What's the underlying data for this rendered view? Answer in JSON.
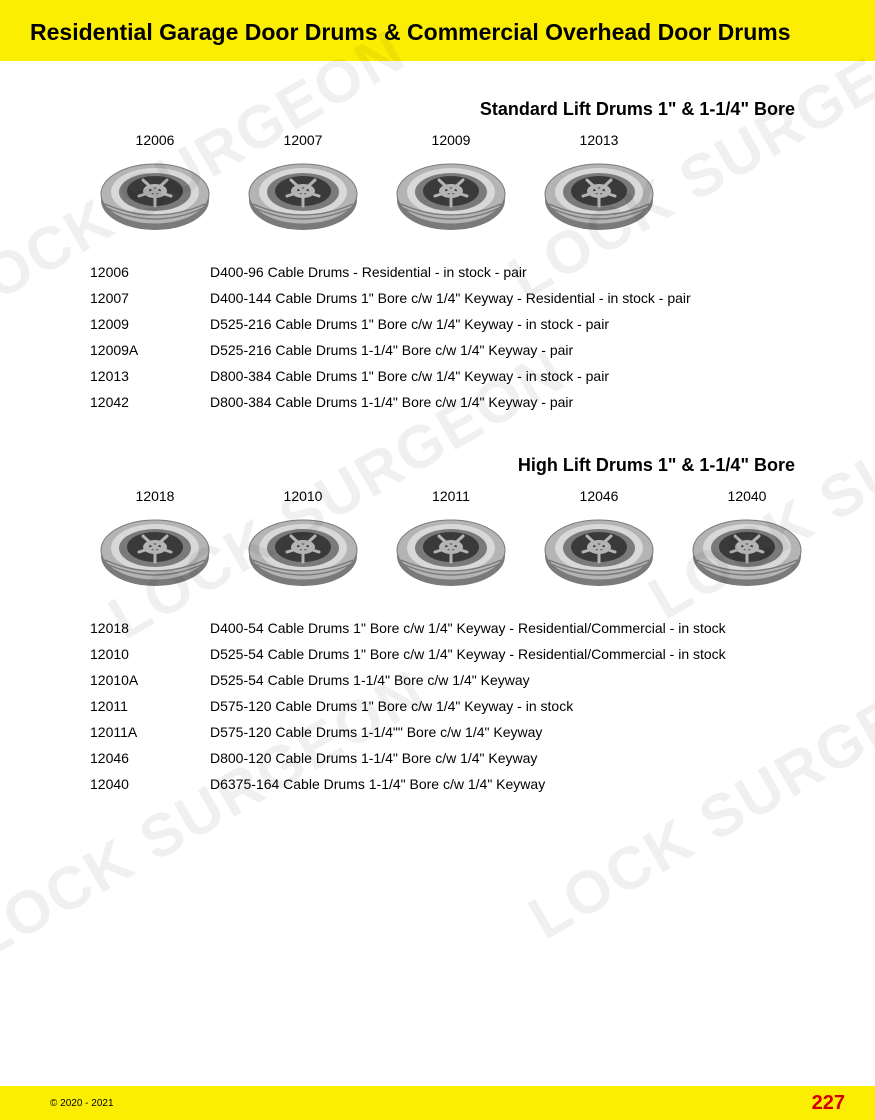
{
  "header": {
    "title": "Residential Garage Door Drums & Commercial Overhead Door Drums"
  },
  "colors": {
    "header_bg": "#fcee03",
    "page_bg": "#ffffff",
    "text": "#000000",
    "page_num": "#d40000",
    "drum_body": "#b4b4b4",
    "drum_shadow": "#7a7a7a",
    "drum_highlight": "#d8d8d8",
    "drum_dark": "#3a3a3a",
    "watermark": "rgba(0,0,0,0.06)"
  },
  "sections": [
    {
      "title": "Standard Lift Drums 1\" & 1-1/4\" Bore",
      "drums": [
        {
          "code": "12006"
        },
        {
          "code": "12007"
        },
        {
          "code": "12009"
        },
        {
          "code": "12013"
        }
      ],
      "specs": [
        {
          "code": "12006",
          "desc": "D400-96 Cable Drums - Residential - in stock - pair"
        },
        {
          "code": "12007",
          "desc": "D400-144 Cable Drums 1\" Bore c/w 1/4\" Keyway - Residential - in stock - pair"
        },
        {
          "code": "12009",
          "desc": "D525-216 Cable Drums 1\" Bore c/w 1/4\" Keyway - in stock - pair"
        },
        {
          "code": "12009A",
          "desc": "D525-216 Cable Drums 1-1/4\" Bore c/w 1/4\" Keyway - pair"
        },
        {
          "code": "12013",
          "desc": "D800-384 Cable Drums 1\" Bore c/w 1/4\" Keyway - in stock - pair"
        },
        {
          "code": "12042",
          "desc": "D800-384 Cable Drums 1-1/4\" Bore c/w 1/4\" Keyway  - pair"
        }
      ]
    },
    {
      "title": "High Lift Drums 1\" & 1-1/4\" Bore",
      "drums": [
        {
          "code": "12018"
        },
        {
          "code": "12010"
        },
        {
          "code": "12011"
        },
        {
          "code": "12046"
        },
        {
          "code": "12040"
        }
      ],
      "specs": [
        {
          "code": "12018",
          "desc": "D400-54 Cable Drums 1\" Bore c/w 1/4\" Keyway - Residential/Commercial - in stock"
        },
        {
          "code": "12010",
          "desc": "D525-54 Cable Drums 1\" Bore c/w 1/4\" Keyway - Residential/Commercial - in stock"
        },
        {
          "code": "12010A",
          "desc": "D525-54 Cable Drums 1-1/4\" Bore c/w 1/4\" Keyway"
        },
        {
          "code": "12011",
          "desc": "D575-120 Cable Drums 1\" Bore c/w 1/4\" Keyway - in stock"
        },
        {
          "code": "12011A",
          "desc": "D575-120 Cable Drums 1-1/4\"\" Bore c/w 1/4\" Keyway"
        },
        {
          "code": "12046",
          "desc": "D800-120 Cable Drums 1-1/4\" Bore c/w 1/4\" Keyway"
        },
        {
          "code": "12040",
          "desc": "D6375-164 Cable Drums 1-1/4\" Bore c/w 1/4\" Keyway"
        }
      ]
    }
  ],
  "footer": {
    "copyright": "© 2020 - 2021",
    "page": "227"
  },
  "watermark_text": "LOCK SURGEON"
}
